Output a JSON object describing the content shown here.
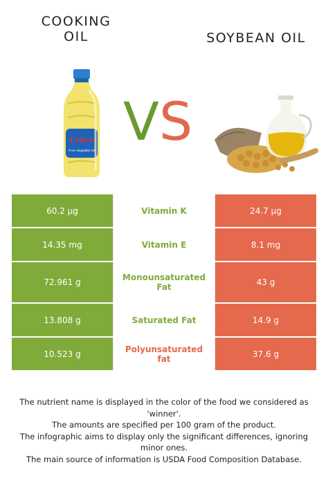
{
  "header": {
    "left_title_line1": "COOKING",
    "left_title_line2": "OIL",
    "right_title": "SOYBEAN OIL",
    "vs_v": "V",
    "vs_s": "S"
  },
  "images": {
    "left_logo_text": "Crisco",
    "left_label": "Pure Vegetable Oil"
  },
  "colors": {
    "cooking_oil": "#80ab3a",
    "soybean_oil": "#e5694c"
  },
  "rows": [
    {
      "left": "60.2 µg",
      "name": "Vitamin K",
      "right": "24.7 µg",
      "winner": "left"
    },
    {
      "left": "14.35 mg",
      "name": "Vitamin E",
      "right": "8.1 mg",
      "winner": "left"
    },
    {
      "left": "72.961 g",
      "name": "Monounsaturated Fat",
      "right": "43 g",
      "winner": "left"
    },
    {
      "left": "13.808 g",
      "name": "Saturated Fat",
      "right": "14.9 g",
      "winner": "left"
    },
    {
      "left": "10.523 g",
      "name": "Polyunsaturated fat",
      "right": "37.6 g",
      "winner": "right"
    }
  ],
  "footer": {
    "line1": "The nutrient name is displayed in the color of the food we considered as 'winner'.",
    "line2": "The amounts are specified per 100 gram of the product.",
    "line3": "The infographic aims to display only the significant differences, ignoring minor ones.",
    "line4": "The main source of information is USDA Food Composition Database."
  }
}
